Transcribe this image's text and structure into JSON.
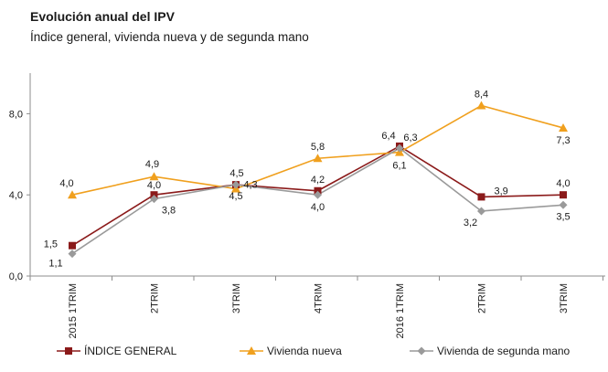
{
  "chart_data": {
    "type": "line",
    "title": "Evolución anual del IPV",
    "subtitle": "Índice general, vivienda nueva y de segunda mano",
    "categories": [
      "2015 1TRIM",
      "2TRIM",
      "3TRIM",
      "4TRIM",
      "2016 1TRIM",
      "2TRIM",
      "3TRIM"
    ],
    "y_ticks": [
      "0,0",
      "4,0",
      "8,0"
    ],
    "ylim": [
      0,
      10
    ],
    "grid": false,
    "legend_position": "bottom",
    "series": [
      {
        "name": "ÍNDICE GENERAL",
        "color": "#8b1a1a",
        "marker": "square",
        "values": [
          1.5,
          4.0,
          4.5,
          4.2,
          6.4,
          3.9,
          4.0
        ],
        "labels": [
          "1,5",
          "4,0",
          "4,5",
          "4,2",
          "6,4",
          "3,9",
          "4,0"
        ]
      },
      {
        "name": "Vivienda nueva",
        "color": "#f0a01e",
        "marker": "triangle",
        "values": [
          4.0,
          4.9,
          4.3,
          5.8,
          6.1,
          8.4,
          7.3
        ],
        "labels": [
          "4,0",
          "4,9",
          "4,3",
          "5,8",
          "6,1",
          "8,4",
          "7,3"
        ]
      },
      {
        "name": "Vivienda de segunda mano",
        "color": "#9a9a9a",
        "marker": "diamond",
        "values": [
          1.1,
          3.8,
          4.5,
          4.0,
          6.3,
          3.2,
          3.5
        ],
        "labels": [
          "1,1",
          "3,8",
          "4,5",
          "4,0",
          "6,3",
          "3,2",
          "3,5"
        ]
      }
    ]
  }
}
